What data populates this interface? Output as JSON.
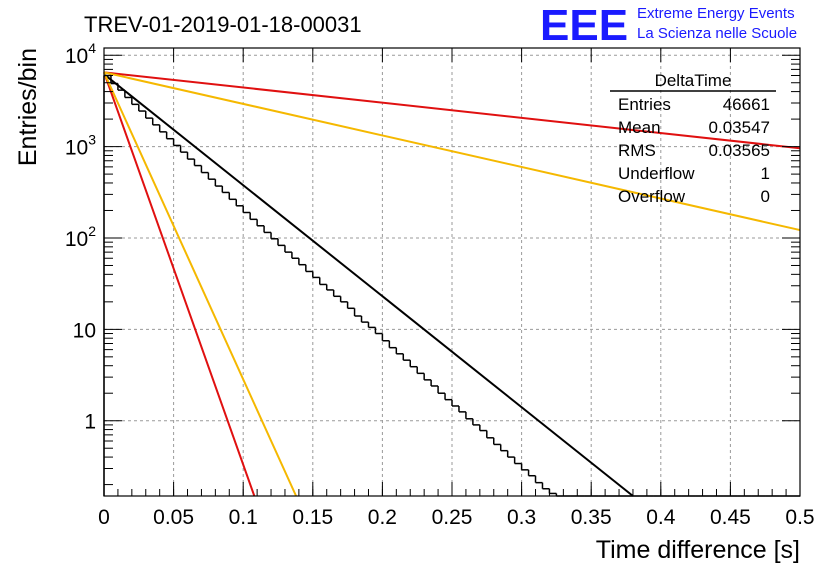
{
  "title": "TREV-01-2019-01-18-00031",
  "logo": {
    "mark": "EEE",
    "line1": "Extreme Energy Events",
    "line2": "La Scienza nelle Scuole"
  },
  "chart_data": {
    "type": "histogram",
    "xlabel": "Time difference [s]",
    "ylabel": "Entries/bin",
    "xlim": [
      0,
      0.5
    ],
    "ylim": [
      0.15,
      12000
    ],
    "y_scale": "log",
    "grid": true,
    "x_ticks": [
      "0",
      "0.05",
      "0.1",
      "0.15",
      "0.2",
      "0.25",
      "0.3",
      "0.35",
      "0.4",
      "0.45",
      "0.5"
    ],
    "y_ticks": [
      {
        "label_base": "10",
        "label_exp": "4",
        "label": ""
      },
      {
        "label_base": "10",
        "label_exp": "3",
        "label": ""
      },
      {
        "label_base": "10",
        "label_exp": "2",
        "label": ""
      },
      {
        "label_base": "",
        "label_exp": "",
        "label": "10"
      },
      {
        "label_base": "",
        "label_exp": "",
        "label": "1"
      }
    ],
    "histogram": {
      "bin_width": 0.005,
      "values": [
        6000,
        4900,
        4150,
        3450,
        2900,
        2450,
        2050,
        1730,
        1450,
        1220,
        1030,
        870,
        730,
        620,
        520,
        440,
        370,
        315,
        265,
        225,
        190,
        160,
        136,
        115,
        98,
        83,
        70,
        60,
        51,
        43,
        37,
        31,
        27,
        23,
        20,
        17,
        14,
        12,
        10.5,
        9,
        7.5,
        6.3,
        5.4,
        4.6,
        3.9,
        3.3,
        2.8,
        2.4,
        2.0,
        1.7,
        1.45,
        1.25,
        1.05,
        0.9,
        0.78,
        0.65,
        0.55,
        0.47,
        0.4,
        0.34,
        0.29,
        0.25,
        0.21,
        0.18,
        0.16,
        0.14,
        0.12,
        0.1,
        0.09,
        0.08,
        0.07,
        0.06,
        0.05,
        0.05,
        0.04,
        0.04,
        0.03,
        0.03,
        0.03,
        0.02,
        0.02,
        0.02,
        0.02,
        0.02,
        0.01,
        0.01,
        0.01,
        0.01,
        0.01,
        0.01,
        0.01,
        0.01,
        0.01,
        0.01,
        0.01,
        0.01,
        0.01,
        0.01,
        0.01,
        0.01
      ]
    },
    "fit_lines": [
      {
        "color": "#000000",
        "x0": 0,
        "y0": 6200,
        "x1": 0.38,
        "y1": 0.15
      },
      {
        "color": "#e01010",
        "x0": 0,
        "y0": 6500,
        "x1": 0.5,
        "y1": 960
      },
      {
        "color": "#f5b800",
        "x0": 0,
        "y0": 6500,
        "x1": 0.5,
        "y1": 122
      },
      {
        "color": "#e01010",
        "x0": 0,
        "y0": 6500,
        "x1": 0.108,
        "y1": 0.15
      },
      {
        "color": "#f5b800",
        "x0": 0,
        "y0": 6500,
        "x1": 0.138,
        "y1": 0.15
      }
    ],
    "stats": {
      "name": "DeltaTime",
      "rows": [
        {
          "label": "Entries",
          "value": "46661"
        },
        {
          "label": "Mean",
          "value": "0.03547"
        },
        {
          "label": "RMS",
          "value": "0.03565"
        },
        {
          "label": "Underflow",
          "value": "1"
        },
        {
          "label": "Overflow",
          "value": "0"
        }
      ]
    }
  }
}
